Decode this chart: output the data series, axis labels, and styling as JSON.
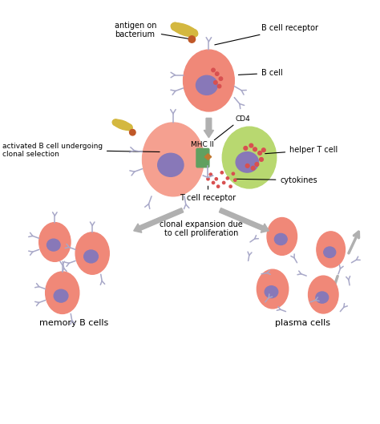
{
  "bg_color": "#ffffff",
  "cell_color_b": "#f08878",
  "cell_color_b_light": "#f5a090",
  "cell_color_t": "#b8d870",
  "cell_color_nucleus": "#8878b8",
  "cell_color_spots": "#d85050",
  "bacterium_color": "#d4b840",
  "antigen_color": "#c05828",
  "mhc_color": "#60a060",
  "mhc_receptor_color": "#d08040",
  "arrow_color": "#b0b0b0",
  "line_color": "#000000",
  "text_color": "#000000",
  "antibody_color": "#a8a8c8",
  "cytokine_color": "#d85050",
  "labels": {
    "antigen_on_bacterium": "antigen on\nbacterium",
    "b_cell_receptor": "B cell receptor",
    "b_cell": "B cell",
    "activated_b_cell": "activated B cell undergoing\nclonal selection",
    "mhc_ii": "MHC II",
    "cd4": "CD4",
    "helper_t_cell": "helper T cell",
    "t_cell_receptor": "T cell receptor",
    "cytokines": "cytokines",
    "clonal_expansion": "clonal expansion due\nto cell proliferation",
    "memory_b_cells": "memory B cells",
    "plasma_cells": "plasma cells"
  }
}
